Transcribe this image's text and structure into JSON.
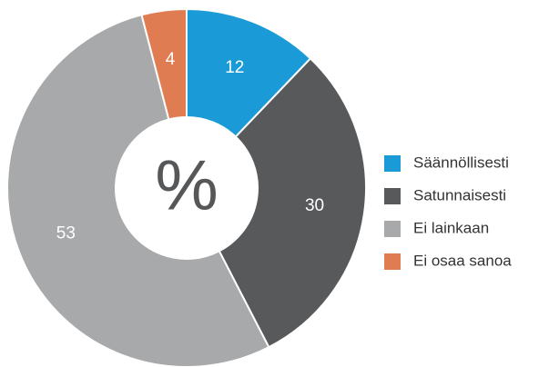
{
  "chart_data": {
    "type": "donut",
    "center_label": "%",
    "categories": [
      "Säännöllisesti",
      "Satunnaisesti",
      "Ei lainkaan",
      "Ei osaa sanoa"
    ],
    "values": [
      12,
      30,
      53,
      4
    ],
    "colors": [
      "#1a9bd7",
      "#58595b",
      "#a7a9ab",
      "#e07c52"
    ]
  }
}
